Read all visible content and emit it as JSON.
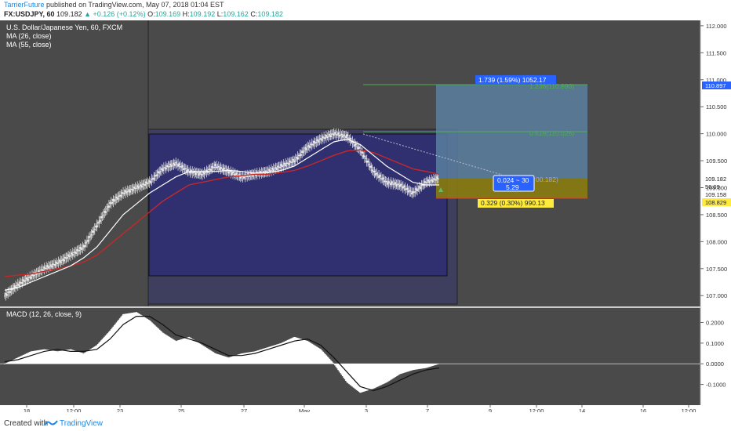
{
  "header": {
    "author": "TarrierFuture",
    "published_text": "published on TradingView.com, May 07, 2018 01:04 EST",
    "symbol": "FX:USDJPY, 60",
    "last": "109.182",
    "change": "▲ +0.126 (+0.12%)",
    "o_label": "O:",
    "o": "109.169",
    "h_label": "H:",
    "h": "109.192",
    "l_label": "L:",
    "l": "109.162",
    "c_label": "C:",
    "c": "109.182"
  },
  "legend": {
    "instrument": "U.S. Dollar/Japanese Yen, 60, FXCM",
    "ma1": "MA (26, close)",
    "ma2": "MA (55, close)",
    "macd": "MACD (12, 26, close, 9)"
  },
  "annotations": {
    "target_box": "1.739 (1.59%) 1052.17",
    "fib_1236": "1.236(110.890)",
    "fib_0618": "0.618(110.026)",
    "ratio_box_1": "0.024 ~ 30",
    "ratio_box_2": "5.29",
    "fib_rr": "00.182)",
    "stop_box": "0.329 (0.30%) 990.13",
    "price_tag_upper": "110.897",
    "price_tag_current": "109.182",
    "price_tag_current_2": "109.158",
    "price_tag_stop": "108.829",
    "price_tag_small": "56:09"
  },
  "footer": {
    "created_with": "Created with",
    "brand": "TradingView"
  },
  "colors": {
    "background": "#4a4a4a",
    "candle": "#dcdcdc",
    "ma_fast": "#ffffff",
    "ma_slow": "#c62828",
    "range_box": "#303070",
    "target_zone": "#5a7fa0",
    "stop_zone": "#b8a000",
    "fib_green": "#4caf50",
    "tag_blue": "#2962ff",
    "tag_yellow": "#ffeb3b"
  },
  "chart_data": [
    {
      "type": "line",
      "title": "U.S. Dollar/Japanese Yen, 60, FXCM",
      "x_ticks": [
        "18",
        "12:00",
        "23",
        "25",
        "27",
        "May",
        "3",
        "7",
        "9",
        "12:00",
        "14",
        "16",
        "12:00"
      ],
      "y_ticks": [
        107.0,
        107.5,
        108.0,
        108.5,
        109.0,
        109.5,
        110.0,
        110.5,
        111.0,
        111.5,
        112.0
      ],
      "ylim": [
        106.8,
        112.1
      ],
      "series": [
        {
          "name": "USDJPY",
          "values": [
            107.0,
            107.2,
            107.35,
            107.5,
            107.6,
            107.75,
            107.9,
            108.3,
            108.7,
            108.9,
            109.0,
            109.1,
            109.35,
            109.45,
            109.3,
            109.25,
            109.4,
            109.3,
            109.2,
            109.25,
            109.3,
            109.4,
            109.5,
            109.75,
            109.9,
            110.0,
            109.95,
            109.7,
            109.3,
            109.1,
            109.05,
            108.9,
            109.1,
            109.18
          ]
        },
        {
          "name": "MA (26, close)",
          "values": [
            107.1,
            107.15,
            107.25,
            107.35,
            107.45,
            107.55,
            107.7,
            107.9,
            108.2,
            108.5,
            108.7,
            108.9,
            109.05,
            109.2,
            109.3,
            109.3,
            109.3,
            109.32,
            109.3,
            109.27,
            109.28,
            109.32,
            109.4,
            109.55,
            109.7,
            109.85,
            109.9,
            109.8,
            109.6,
            109.4,
            109.25,
            109.1,
            109.05,
            109.05
          ]
        },
        {
          "name": "MA (55, close)",
          "values": [
            107.35,
            107.38,
            107.4,
            107.45,
            107.5,
            107.55,
            107.62,
            107.75,
            107.95,
            108.15,
            108.35,
            108.55,
            108.75,
            108.9,
            109.05,
            109.1,
            109.15,
            109.2,
            109.22,
            109.25,
            109.25,
            109.28,
            109.32,
            109.4,
            109.5,
            109.6,
            109.68,
            109.7,
            109.65,
            109.55,
            109.45,
            109.35,
            109.3,
            109.25
          ]
        }
      ]
    },
    {
      "type": "area",
      "title": "MACD (12, 26, close, 9)",
      "y_ticks": [
        -0.1,
        0.0,
        0.1,
        0.2
      ],
      "ylim": [
        -0.2,
        0.27
      ],
      "series": [
        {
          "name": "MACD",
          "values": [
            -0.0,
            0.03,
            0.06,
            0.07,
            0.06,
            0.07,
            0.05,
            0.09,
            0.16,
            0.24,
            0.25,
            0.21,
            0.15,
            0.11,
            0.13,
            0.09,
            0.05,
            0.03,
            0.05,
            0.06,
            0.08,
            0.1,
            0.13,
            0.11,
            0.07,
            0.0,
            -0.09,
            -0.14,
            -0.12,
            -0.09,
            -0.05,
            -0.03,
            -0.02,
            0.0
          ]
        },
        {
          "name": "Signal",
          "values": [
            0.01,
            0.02,
            0.04,
            0.06,
            0.07,
            0.06,
            0.06,
            0.07,
            0.12,
            0.19,
            0.23,
            0.23,
            0.19,
            0.14,
            0.12,
            0.1,
            0.07,
            0.04,
            0.04,
            0.05,
            0.07,
            0.09,
            0.11,
            0.12,
            0.09,
            0.03,
            -0.04,
            -0.11,
            -0.13,
            -0.11,
            -0.08,
            -0.05,
            -0.03,
            -0.02
          ]
        }
      ]
    }
  ]
}
